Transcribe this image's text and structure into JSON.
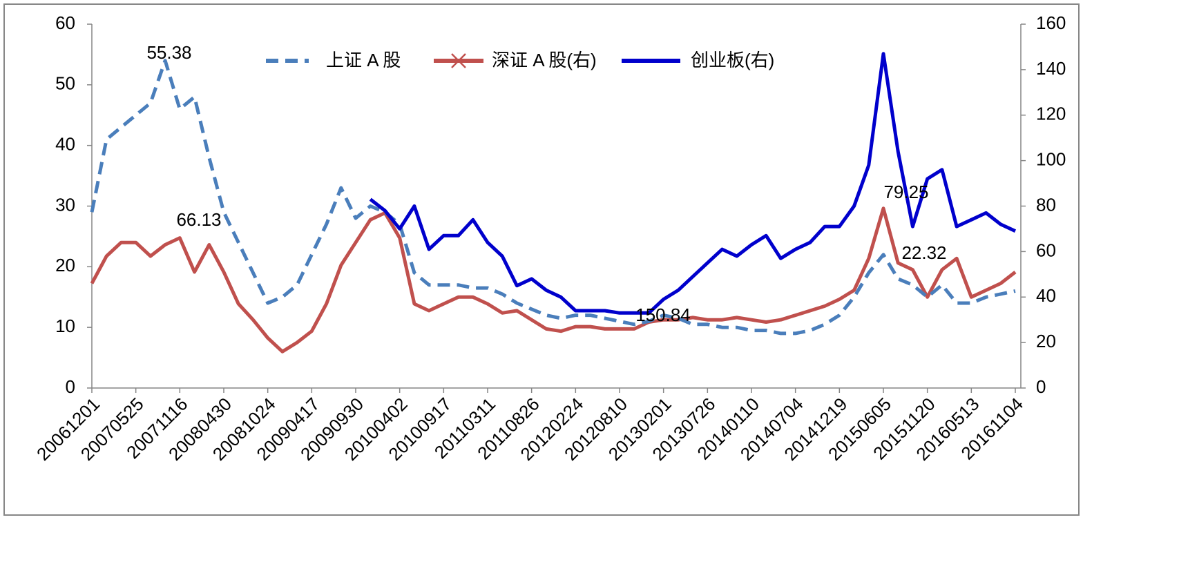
{
  "chart_data": {
    "type": "line",
    "categories": [
      "20061201",
      null,
      null,
      "20070525",
      null,
      null,
      "20071116",
      null,
      null,
      "20080430",
      null,
      null,
      "20081024",
      null,
      null,
      "20090417",
      null,
      null,
      "20090930",
      null,
      null,
      "20100402",
      null,
      null,
      "20100917",
      null,
      null,
      "20110311",
      null,
      null,
      "20110826",
      null,
      null,
      "20120224",
      null,
      null,
      "20120810",
      null,
      null,
      "20130201",
      null,
      null,
      "20130726",
      null,
      null,
      "20140110",
      null,
      null,
      "20140704",
      null,
      null,
      "20141219",
      null,
      null,
      "20150605",
      null,
      null,
      "20151120",
      null,
      null,
      "20160513",
      null,
      null,
      "20161104"
    ],
    "series": [
      {
        "name": "上证 A 股",
        "color": "#4a7ebb",
        "dash": true,
        "axis": "y",
        "values": [
          29,
          41,
          43,
          45,
          47,
          54,
          46,
          48,
          38,
          29,
          24,
          19,
          14,
          15,
          17,
          22,
          27,
          33,
          28,
          30,
          29,
          27,
          19,
          17,
          17,
          17,
          16.5,
          16.5,
          15.5,
          14,
          13,
          12,
          11.5,
          12,
          12,
          11.5,
          11,
          10.5,
          11,
          12,
          11.5,
          10.5,
          10.5,
          10,
          10,
          9.5,
          9.5,
          9,
          9,
          9.5,
          10.5,
          12,
          15,
          19,
          22,
          18,
          17,
          15,
          17,
          14,
          14,
          15,
          15.5,
          16
        ]
      },
      {
        "name": "深证 A 股(右)",
        "color": "#c0504d",
        "dash": false,
        "axis": "y2",
        "values": [
          46,
          58,
          64,
          64,
          58,
          63,
          66,
          51,
          63,
          51,
          37,
          30,
          22,
          16,
          20,
          25,
          37,
          54,
          64,
          74,
          77,
          66,
          37,
          34,
          37,
          40,
          40,
          37,
          33,
          34,
          30,
          26,
          25,
          27,
          27,
          26,
          26,
          26,
          29,
          30,
          30,
          31,
          30,
          30,
          31,
          30,
          29,
          30,
          32,
          34,
          36,
          39,
          43,
          57,
          79,
          55,
          52,
          40,
          52,
          57,
          40,
          43,
          46,
          51
        ]
      },
      {
        "name": "创业板(右)",
        "color": "#0000cc",
        "dash": false,
        "axis": "y2",
        "values": [
          null,
          null,
          null,
          null,
          null,
          null,
          null,
          null,
          null,
          null,
          null,
          null,
          null,
          null,
          null,
          null,
          null,
          null,
          null,
          83,
          78,
          70,
          80,
          61,
          67,
          67,
          74,
          64,
          58,
          45,
          48,
          43,
          40,
          34,
          34,
          34,
          33,
          33,
          33,
          39,
          43,
          49,
          55,
          61,
          58,
          63,
          67,
          57,
          61,
          64,
          71,
          71,
          80,
          98,
          147,
          104,
          71,
          92,
          96,
          71,
          74,
          77,
          72,
          69
        ]
      }
    ],
    "annotations": [
      "55.38",
      "66.13",
      "150.84",
      "79.25",
      "22.32"
    ],
    "ylim": [
      0,
      60
    ],
    "yticks": [
      0,
      10,
      20,
      30,
      40,
      50,
      60
    ],
    "y2lim": [
      0,
      160
    ],
    "y2ticks": [
      0,
      20,
      40,
      60,
      80,
      100,
      120,
      140,
      160
    ],
    "legend": "top"
  }
}
